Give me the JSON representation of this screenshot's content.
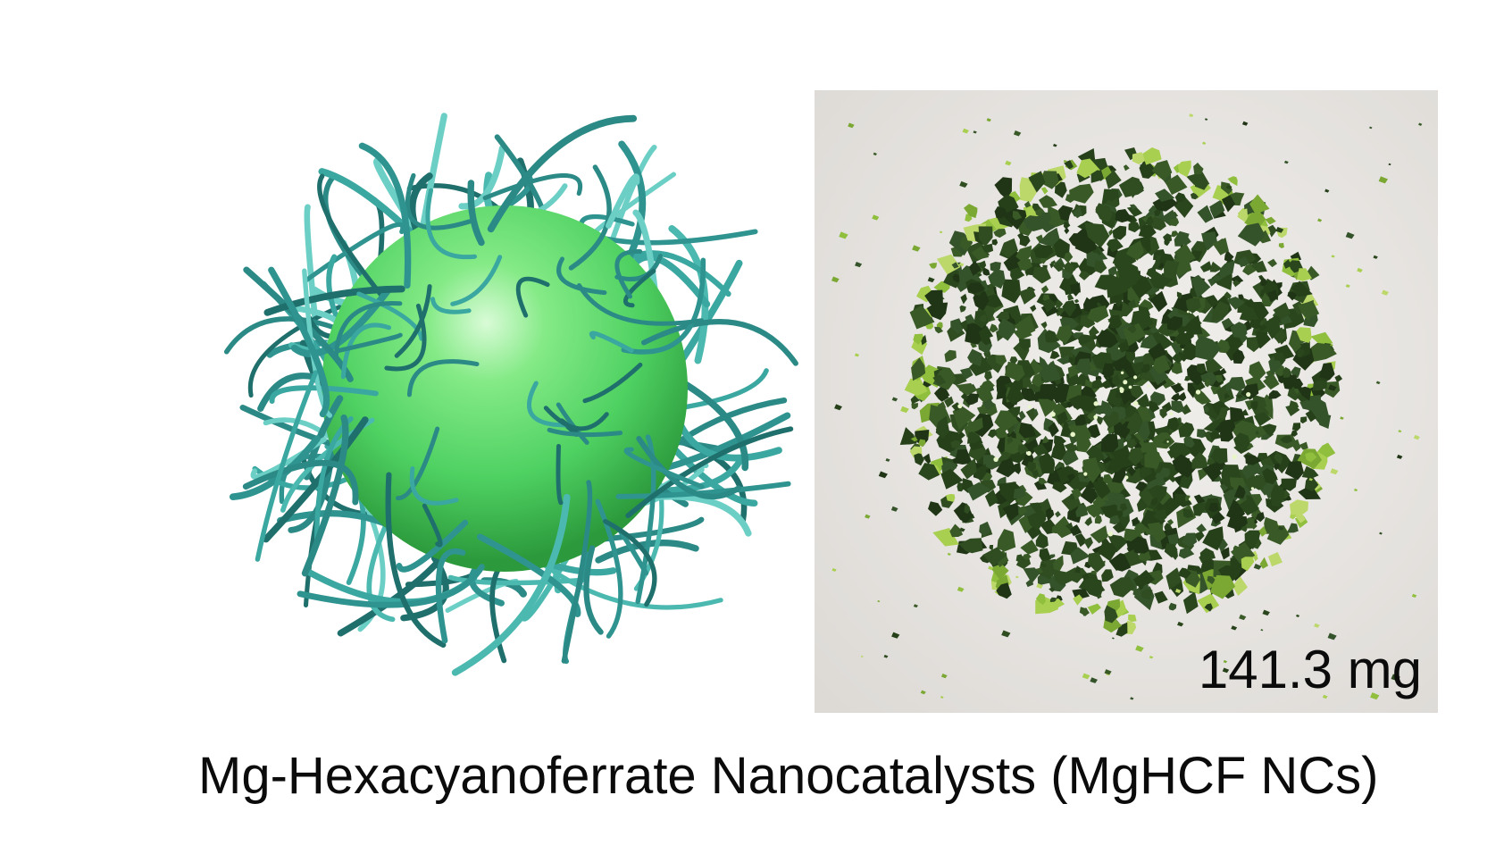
{
  "figure": {
    "illustration_icon": "nanoparticle-sphere-with-polymer-strands",
    "photo_icon": "green-powder-on-white-paper",
    "mass_label": "141.3 mg",
    "caption": "Mg-Hexacyanoferrate Nanocatalysts (MgHCF NCs)",
    "colors": {
      "sphere": "#56d86a",
      "strands": "#2f8f8a",
      "powder": "#2f4a1c",
      "background_paper": "#e9e7e4"
    }
  }
}
